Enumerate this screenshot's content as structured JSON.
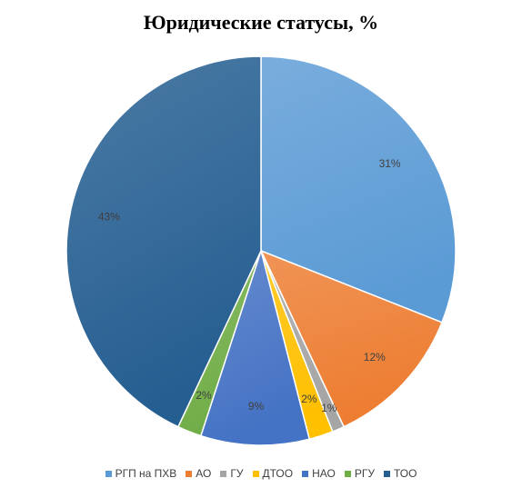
{
  "chart_data": {
    "type": "pie",
    "title": "Юридические статусы, %",
    "categories": [
      "РГП на ПХВ",
      "АО",
      "ГУ",
      "ДТОО",
      "НАО",
      "РГУ",
      "ТОО"
    ],
    "values": [
      31,
      12,
      1,
      2,
      9,
      2,
      43
    ],
    "data_labels": [
      "31%",
      "12%",
      "1%",
      "2%",
      "9%",
      "2%",
      "43%"
    ],
    "colors": [
      "#5B9BD5",
      "#ED7D31",
      "#A5A5A5",
      "#FFC000",
      "#4472C4",
      "#70AD47",
      "#255E91"
    ],
    "legend_position": "bottom"
  }
}
